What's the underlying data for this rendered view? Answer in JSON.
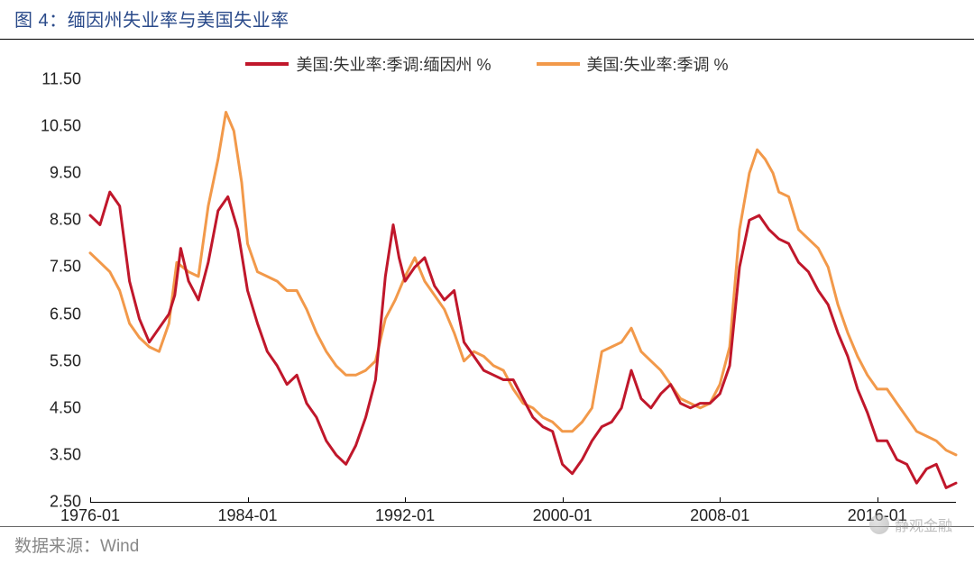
{
  "title_prefix": "图 4：",
  "title_text": "缅因州失业率与美国失业率",
  "source_label": "数据来源：",
  "source_name": "Wind",
  "watermark_text": "静观金融",
  "chart": {
    "type": "line",
    "background_color": "#ffffff",
    "title_color": "#2a4a8a",
    "axis_color": "#000000",
    "axis_fontsize": 18,
    "legend_fontsize": 18,
    "title_fontsize": 20,
    "line_width": 3,
    "x_start_year": 1976,
    "x_end_year": 2020,
    "x_tick_labels": [
      "1976-01",
      "1984-01",
      "1992-01",
      "2000-01",
      "2008-01",
      "2016-01"
    ],
    "x_tick_positions_year": [
      1976,
      1984,
      1992,
      2000,
      2008,
      2016
    ],
    "ylim": [
      2.5,
      11.5
    ],
    "y_ticks": [
      2.5,
      3.5,
      4.5,
      5.5,
      6.5,
      7.5,
      8.5,
      9.5,
      10.5,
      11.5
    ],
    "series": [
      {
        "name": "美国:失业率:季调:缅因州 %",
        "color": "#c0172b",
        "data": [
          [
            1976.0,
            8.6
          ],
          [
            1976.5,
            8.4
          ],
          [
            1977.0,
            9.1
          ],
          [
            1977.5,
            8.8
          ],
          [
            1978.0,
            7.2
          ],
          [
            1978.5,
            6.4
          ],
          [
            1979.0,
            5.9
          ],
          [
            1979.5,
            6.2
          ],
          [
            1980.0,
            6.5
          ],
          [
            1980.3,
            6.9
          ],
          [
            1980.6,
            7.9
          ],
          [
            1981.0,
            7.2
          ],
          [
            1981.5,
            6.8
          ],
          [
            1982.0,
            7.6
          ],
          [
            1982.5,
            8.7
          ],
          [
            1983.0,
            9.0
          ],
          [
            1983.5,
            8.3
          ],
          [
            1984.0,
            7.0
          ],
          [
            1984.5,
            6.3
          ],
          [
            1985.0,
            5.7
          ],
          [
            1985.5,
            5.4
          ],
          [
            1986.0,
            5.0
          ],
          [
            1986.5,
            5.2
          ],
          [
            1987.0,
            4.6
          ],
          [
            1987.5,
            4.3
          ],
          [
            1988.0,
            3.8
          ],
          [
            1988.5,
            3.5
          ],
          [
            1989.0,
            3.3
          ],
          [
            1989.5,
            3.7
          ],
          [
            1990.0,
            4.3
          ],
          [
            1990.5,
            5.1
          ],
          [
            1991.0,
            7.3
          ],
          [
            1991.4,
            8.4
          ],
          [
            1991.7,
            7.7
          ],
          [
            1992.0,
            7.2
          ],
          [
            1992.5,
            7.5
          ],
          [
            1993.0,
            7.7
          ],
          [
            1993.5,
            7.1
          ],
          [
            1994.0,
            6.8
          ],
          [
            1994.5,
            7.0
          ],
          [
            1995.0,
            5.9
          ],
          [
            1995.5,
            5.6
          ],
          [
            1996.0,
            5.3
          ],
          [
            1996.5,
            5.2
          ],
          [
            1997.0,
            5.1
          ],
          [
            1997.5,
            5.1
          ],
          [
            1998.0,
            4.7
          ],
          [
            1998.5,
            4.3
          ],
          [
            1999.0,
            4.1
          ],
          [
            1999.5,
            4.0
          ],
          [
            2000.0,
            3.3
          ],
          [
            2000.5,
            3.1
          ],
          [
            2001.0,
            3.4
          ],
          [
            2001.5,
            3.8
          ],
          [
            2002.0,
            4.1
          ],
          [
            2002.5,
            4.2
          ],
          [
            2003.0,
            4.5
          ],
          [
            2003.5,
            5.3
          ],
          [
            2004.0,
            4.7
          ],
          [
            2004.5,
            4.5
          ],
          [
            2005.0,
            4.8
          ],
          [
            2005.5,
            5.0
          ],
          [
            2006.0,
            4.6
          ],
          [
            2006.5,
            4.5
          ],
          [
            2007.0,
            4.6
          ],
          [
            2007.5,
            4.6
          ],
          [
            2008.0,
            4.8
          ],
          [
            2008.5,
            5.4
          ],
          [
            2009.0,
            7.5
          ],
          [
            2009.5,
            8.5
          ],
          [
            2010.0,
            8.6
          ],
          [
            2010.5,
            8.3
          ],
          [
            2011.0,
            8.1
          ],
          [
            2011.5,
            8.0
          ],
          [
            2012.0,
            7.6
          ],
          [
            2012.5,
            7.4
          ],
          [
            2013.0,
            7.0
          ],
          [
            2013.5,
            6.7
          ],
          [
            2014.0,
            6.1
          ],
          [
            2014.5,
            5.6
          ],
          [
            2015.0,
            4.9
          ],
          [
            2015.5,
            4.4
          ],
          [
            2016.0,
            3.8
          ],
          [
            2016.5,
            3.8
          ],
          [
            2017.0,
            3.4
          ],
          [
            2017.5,
            3.3
          ],
          [
            2018.0,
            2.9
          ],
          [
            2018.5,
            3.2
          ],
          [
            2019.0,
            3.3
          ],
          [
            2019.5,
            2.8
          ],
          [
            2020.0,
            2.9
          ]
        ]
      },
      {
        "name": "美国:失业率:季调 %",
        "color": "#f2994a",
        "data": [
          [
            1976.0,
            7.8
          ],
          [
            1976.5,
            7.6
          ],
          [
            1977.0,
            7.4
          ],
          [
            1977.5,
            7.0
          ],
          [
            1978.0,
            6.3
          ],
          [
            1978.5,
            6.0
          ],
          [
            1979.0,
            5.8
          ],
          [
            1979.5,
            5.7
          ],
          [
            1980.0,
            6.3
          ],
          [
            1980.4,
            7.6
          ],
          [
            1980.7,
            7.5
          ],
          [
            1981.0,
            7.4
          ],
          [
            1981.5,
            7.3
          ],
          [
            1982.0,
            8.8
          ],
          [
            1982.5,
            9.8
          ],
          [
            1982.9,
            10.8
          ],
          [
            1983.3,
            10.4
          ],
          [
            1983.7,
            9.3
          ],
          [
            1984.0,
            8.0
          ],
          [
            1984.5,
            7.4
          ],
          [
            1985.0,
            7.3
          ],
          [
            1985.5,
            7.2
          ],
          [
            1986.0,
            7.0
          ],
          [
            1986.5,
            7.0
          ],
          [
            1987.0,
            6.6
          ],
          [
            1987.5,
            6.1
          ],
          [
            1988.0,
            5.7
          ],
          [
            1988.5,
            5.4
          ],
          [
            1989.0,
            5.2
          ],
          [
            1989.5,
            5.2
          ],
          [
            1990.0,
            5.3
          ],
          [
            1990.5,
            5.5
          ],
          [
            1991.0,
            6.4
          ],
          [
            1991.5,
            6.8
          ],
          [
            1992.0,
            7.3
          ],
          [
            1992.5,
            7.7
          ],
          [
            1993.0,
            7.2
          ],
          [
            1993.5,
            6.9
          ],
          [
            1994.0,
            6.6
          ],
          [
            1994.5,
            6.1
          ],
          [
            1995.0,
            5.5
          ],
          [
            1995.5,
            5.7
          ],
          [
            1996.0,
            5.6
          ],
          [
            1996.5,
            5.4
          ],
          [
            1997.0,
            5.3
          ],
          [
            1997.5,
            4.9
          ],
          [
            1998.0,
            4.6
          ],
          [
            1998.5,
            4.5
          ],
          [
            1999.0,
            4.3
          ],
          [
            1999.5,
            4.2
          ],
          [
            2000.0,
            4.0
          ],
          [
            2000.5,
            4.0
          ],
          [
            2001.0,
            4.2
          ],
          [
            2001.5,
            4.5
          ],
          [
            2002.0,
            5.7
          ],
          [
            2002.5,
            5.8
          ],
          [
            2003.0,
            5.9
          ],
          [
            2003.5,
            6.2
          ],
          [
            2004.0,
            5.7
          ],
          [
            2004.5,
            5.5
          ],
          [
            2005.0,
            5.3
          ],
          [
            2005.5,
            5.0
          ],
          [
            2006.0,
            4.7
          ],
          [
            2006.5,
            4.6
          ],
          [
            2007.0,
            4.5
          ],
          [
            2007.5,
            4.6
          ],
          [
            2008.0,
            5.0
          ],
          [
            2008.5,
            5.8
          ],
          [
            2009.0,
            8.3
          ],
          [
            2009.5,
            9.5
          ],
          [
            2009.9,
            10.0
          ],
          [
            2010.3,
            9.8
          ],
          [
            2010.7,
            9.5
          ],
          [
            2011.0,
            9.1
          ],
          [
            2011.5,
            9.0
          ],
          [
            2012.0,
            8.3
          ],
          [
            2012.5,
            8.1
          ],
          [
            2013.0,
            7.9
          ],
          [
            2013.5,
            7.5
          ],
          [
            2014.0,
            6.7
          ],
          [
            2014.5,
            6.1
          ],
          [
            2015.0,
            5.6
          ],
          [
            2015.5,
            5.2
          ],
          [
            2016.0,
            4.9
          ],
          [
            2016.5,
            4.9
          ],
          [
            2017.0,
            4.6
          ],
          [
            2017.5,
            4.3
          ],
          [
            2018.0,
            4.0
          ],
          [
            2018.5,
            3.9
          ],
          [
            2019.0,
            3.8
          ],
          [
            2019.5,
            3.6
          ],
          [
            2020.0,
            3.5
          ]
        ]
      }
    ]
  }
}
